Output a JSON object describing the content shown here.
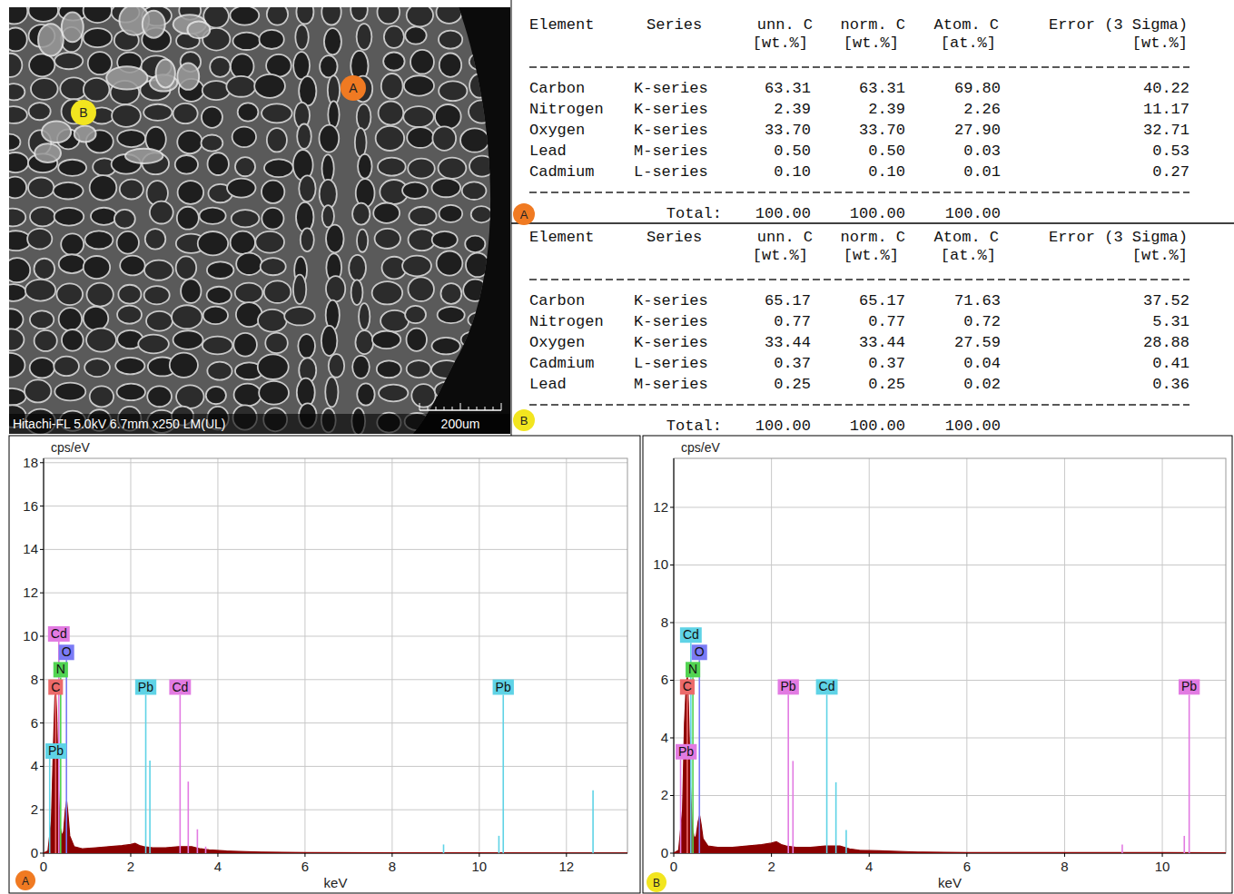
{
  "image": {
    "caption": "Hitachi-FL 5.0kV 6.7mm x250 LM(UL)",
    "scale_label": "200um",
    "markers": [
      "A",
      "B"
    ]
  },
  "tables": [
    {
      "label": "A",
      "header": [
        "Element",
        "Series",
        "unn. C",
        "norm. C",
        "Atom. C",
        "Error (3 Sigma)"
      ],
      "units": [
        "[wt.%]",
        "[wt.%]",
        "[at.%]",
        "[wt.%]"
      ],
      "rows": [
        [
          "Carbon",
          "K-series",
          "63.31",
          "63.31",
          "69.80",
          "40.22"
        ],
        [
          "Nitrogen",
          "K-series",
          "2.39",
          "2.39",
          "2.26",
          "11.17"
        ],
        [
          "Oxygen",
          "K-series",
          "33.70",
          "33.70",
          "27.90",
          "32.71"
        ],
        [
          "Lead",
          "M-series",
          "0.50",
          "0.50",
          "0.03",
          "0.53"
        ],
        [
          "Cadmium",
          "L-series",
          "0.10",
          "0.10",
          "0.01",
          "0.27"
        ]
      ],
      "total_label": "Total:",
      "totals": [
        "100.00",
        "100.00",
        "100.00"
      ]
    },
    {
      "label": "B",
      "header": [
        "Element",
        "Series",
        "unn. C",
        "norm. C",
        "Atom. C",
        "Error (3 Sigma)"
      ],
      "units": [
        "[wt.%]",
        "[wt.%]",
        "[at.%]",
        "[wt.%]"
      ],
      "rows": [
        [
          "Carbon",
          "K-series",
          "65.17",
          "65.17",
          "71.63",
          "37.52"
        ],
        [
          "Nitrogen",
          "K-series",
          "0.77",
          "0.77",
          "0.72",
          "5.31"
        ],
        [
          "Oxygen",
          "K-series",
          "33.44",
          "33.44",
          "27.59",
          "28.88"
        ],
        [
          "Cadmium",
          "L-series",
          "0.37",
          "0.37",
          "0.04",
          "0.41"
        ],
        [
          "Lead",
          "M-series",
          "0.25",
          "0.25",
          "0.02",
          "0.36"
        ]
      ],
      "total_label": "Total:",
      "totals": [
        "100.00",
        "100.00",
        "100.00"
      ]
    }
  ],
  "chart_data": [
    {
      "type": "area",
      "title": "A",
      "x_label": "keV",
      "y_label": "cps/eV",
      "xlim": [
        0,
        13.4
      ],
      "ylim": [
        0,
        18.2
      ],
      "xticks": [
        0,
        2,
        4,
        6,
        8,
        10,
        12
      ],
      "yticks": [
        0,
        2,
        4,
        6,
        8,
        10,
        12,
        14,
        16,
        18
      ],
      "grid": true,
      "x": [
        0,
        0.1,
        0.18,
        0.22,
        0.26,
        0.28,
        0.3,
        0.34,
        0.38,
        0.42,
        0.46,
        0.5,
        0.53,
        0.56,
        0.6,
        0.7,
        0.9,
        1.2,
        1.5,
        1.8,
        2.0,
        2.1,
        2.2,
        2.3,
        2.5,
        2.8,
        3.1,
        3.4,
        3.6,
        3.8,
        4.2,
        5,
        6,
        8,
        10,
        12,
        13.4
      ],
      "series": [
        {
          "color": "#8b0000",
          "values": [
            0,
            0.1,
            1.5,
            4.5,
            7.2,
            7.4,
            6.5,
            3.0,
            1.2,
            0.8,
            1.0,
            2.0,
            2.4,
            1.8,
            0.8,
            0.3,
            0.2,
            0.25,
            0.3,
            0.35,
            0.4,
            0.45,
            0.35,
            0.3,
            0.25,
            0.25,
            0.3,
            0.3,
            0.2,
            0.15,
            0.1,
            0.05,
            0.03,
            0.02,
            0.02,
            0.01,
            0.01
          ]
        }
      ],
      "element_lines": [
        {
          "label": "Cd",
          "color": "#e27be2",
          "x": 0.35,
          "y": 9.75
        },
        {
          "label": "O",
          "color": "#7b7bf5",
          "x": 0.525,
          "y": 8.9
        },
        {
          "label": "N",
          "color": "#52d452",
          "x": 0.392,
          "y": 8.1
        },
        {
          "label": "C",
          "color": "#ec6a6a",
          "x": 0.277,
          "y": 7.3
        },
        {
          "label": "Pb",
          "color": "#5fd3e6",
          "x": 0.14,
          "y": 4.35
        },
        {
          "label": "Pb",
          "color": "#5fd3e6",
          "x": 2.345,
          "y": 7.3
        },
        {
          "label": "Cd",
          "color": "#e27be2",
          "x": 3.133,
          "y": 7.3
        },
        {
          "label": "Pb",
          "color": "#5fd3e6",
          "x": 10.55,
          "y": 7.3
        },
        {
          "color": "#5fd3e6",
          "x": 2.44,
          "y": 4.27
        },
        {
          "color": "#e27be2",
          "x": 3.32,
          "y": 3.3
        },
        {
          "color": "#e27be2",
          "x": 3.53,
          "y": 1.1
        },
        {
          "color": "#e27be2",
          "x": 3.72,
          "y": 0.3
        },
        {
          "color": "#5fd3e6",
          "x": 9.18,
          "y": 0.4
        },
        {
          "color": "#5fd3e6",
          "x": 10.45,
          "y": 0.8
        },
        {
          "color": "#5fd3e6",
          "x": 12.61,
          "y": 2.9
        }
      ]
    },
    {
      "type": "area",
      "title": "B",
      "x_label": "keV",
      "y_label": "cps/eV",
      "xlim": [
        0,
        11.3
      ],
      "ylim": [
        0,
        13.7
      ],
      "xticks": [
        0,
        2,
        4,
        6,
        8,
        10
      ],
      "yticks": [
        0,
        2,
        4,
        6,
        8,
        10,
        12
      ],
      "grid": true,
      "x": [
        0,
        0.1,
        0.18,
        0.22,
        0.26,
        0.28,
        0.3,
        0.34,
        0.38,
        0.42,
        0.46,
        0.5,
        0.53,
        0.56,
        0.6,
        0.7,
        0.9,
        1.2,
        1.5,
        1.8,
        2.0,
        2.1,
        2.2,
        2.3,
        2.5,
        2.8,
        3.1,
        3.4,
        3.6,
        3.8,
        4.2,
        5,
        6,
        8,
        10,
        11.3
      ],
      "series": [
        {
          "color": "#8b0000",
          "values": [
            0,
            0.1,
            1.5,
            4.5,
            6.0,
            6.1,
            5.2,
            2.4,
            0.9,
            0.5,
            0.6,
            1.1,
            1.3,
            1.0,
            0.5,
            0.25,
            0.2,
            0.2,
            0.25,
            0.3,
            0.35,
            0.4,
            0.3,
            0.25,
            0.2,
            0.2,
            0.25,
            0.25,
            0.15,
            0.1,
            0.08,
            0.04,
            0.02,
            0.02,
            0.02,
            0.01
          ]
        }
      ],
      "element_lines": [
        {
          "label": "Cd",
          "color": "#5fd3e6",
          "x": 0.35,
          "y": 7.3
        },
        {
          "label": "O",
          "color": "#7b7bf5",
          "x": 0.525,
          "y": 6.7
        },
        {
          "label": "N",
          "color": "#52d452",
          "x": 0.392,
          "y": 6.1
        },
        {
          "label": "C",
          "color": "#ec6a6a",
          "x": 0.277,
          "y": 5.5
        },
        {
          "label": "Pb",
          "color": "#e27be2",
          "x": 0.14,
          "y": 3.25
        },
        {
          "label": "Pb",
          "color": "#e27be2",
          "x": 2.345,
          "y": 5.5
        },
        {
          "label": "Cd",
          "color": "#5fd3e6",
          "x": 3.133,
          "y": 5.5
        },
        {
          "label": "Pb",
          "color": "#e27be2",
          "x": 10.55,
          "y": 5.5
        },
        {
          "color": "#e27be2",
          "x": 2.44,
          "y": 3.2
        },
        {
          "color": "#5fd3e6",
          "x": 3.32,
          "y": 2.46
        },
        {
          "color": "#5fd3e6",
          "x": 3.53,
          "y": 0.8
        },
        {
          "color": "#e27be2",
          "x": 9.18,
          "y": 0.3
        },
        {
          "color": "#e27be2",
          "x": 10.45,
          "y": 0.6
        }
      ]
    }
  ]
}
